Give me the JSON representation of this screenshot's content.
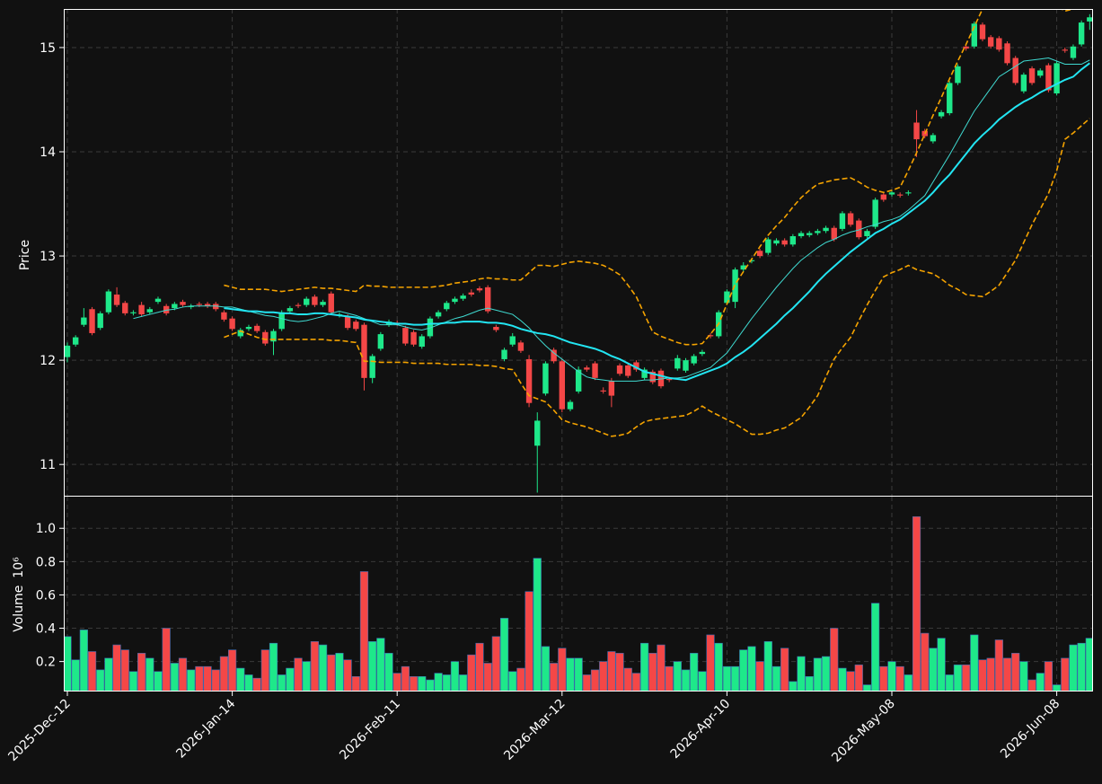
{
  "chart_data": {
    "type": "candlestick",
    "ylabel": "Price",
    "volume_ylabel": "Volume",
    "volume_scale": "10⁶",
    "up_color": "#1ee88a",
    "down_color": "#f44747",
    "grid": true,
    "ylim": [
      10.7,
      15.37
    ],
    "yticks": [
      11,
      12,
      13,
      14,
      15
    ],
    "volume_ylim": [
      0.02,
      1.19
    ],
    "volume_yticks": [
      0.2,
      0.4,
      0.6,
      0.8,
      {
        "value": 1,
        "label": "1.0"
      }
    ],
    "categories": [
      "2025-Dec-12",
      null,
      null,
      null,
      null,
      null,
      null,
      null,
      null,
      null,
      null,
      null,
      null,
      null,
      null,
      null,
      null,
      null,
      null,
      null,
      "2026-Jan-14",
      null,
      null,
      null,
      null,
      null,
      null,
      null,
      null,
      null,
      null,
      null,
      null,
      null,
      null,
      null,
      null,
      null,
      null,
      null,
      "2026-Feb-11",
      null,
      null,
      null,
      null,
      null,
      null,
      null,
      null,
      null,
      null,
      null,
      null,
      null,
      null,
      null,
      null,
      null,
      null,
      null,
      "2026-Mar-12",
      null,
      null,
      null,
      null,
      null,
      null,
      null,
      null,
      null,
      null,
      null,
      null,
      null,
      null,
      null,
      null,
      null,
      null,
      null,
      "2026-Apr-10",
      null,
      null,
      null,
      null,
      null,
      null,
      null,
      null,
      null,
      null,
      null,
      null,
      null,
      null,
      null,
      null,
      null,
      null,
      null,
      "2026-May-08",
      null,
      null,
      null,
      null,
      null,
      null,
      null,
      null,
      null,
      null,
      null,
      null,
      null,
      null,
      null,
      null,
      null,
      null,
      null,
      "2026-Jun-08",
      null,
      null,
      null,
      null
    ],
    "open": [
      12.03,
      12.15,
      12.34,
      12.49,
      12.31,
      12.46,
      12.63,
      12.55,
      12.45,
      12.53,
      12.46,
      12.56,
      12.52,
      12.5,
      12.56,
      12.51,
      12.54,
      12.54,
      12.54,
      12.46,
      12.4,
      12.23,
      12.3,
      12.33,
      12.27,
      12.18,
      12.3,
      12.47,
      12.53,
      12.53,
      12.61,
      12.53,
      12.64,
      12.43,
      12.42,
      12.37,
      12.34,
      11.83,
      12.11,
      12.34,
      12.36,
      12.31,
      12.27,
      12.13,
      12.23,
      12.42,
      12.49,
      12.56,
      12.59,
      12.65,
      12.69,
      12.7,
      12.32,
      12.01,
      12.15,
      12.17,
      12.01,
      11.18,
      11.68,
      12.1,
      11.99,
      11.53,
      11.7,
      11.93,
      11.97,
      11.71,
      11.8,
      11.95,
      11.95,
      11.98,
      11.83,
      11.89,
      11.9,
      11.82,
      11.92,
      11.9,
      11.97,
      12.06,
      12.24,
      12.23,
      12.55,
      12.56,
      12.87,
      12.95,
      13.05,
      13.03,
      13.12,
      13.15,
      13.11,
      13.19,
      13.2,
      13.22,
      13.24,
      13.27,
      13.26,
      13.41,
      13.34,
      13.19,
      13.28,
      13.59,
      13.59,
      13.59,
      13.6,
      14.28,
      14.2,
      14.1,
      14.34,
      14.37,
      14.66,
      15.01,
      15.01,
      15.22,
      15.1,
      15.09,
      15.04,
      14.9,
      14.58,
      14.8,
      14.73,
      14.83,
      14.56,
      14.98,
      14.9,
      15.03,
      15.25
    ],
    "high": [
      12.17,
      12.24,
      12.5,
      12.51,
      12.47,
      12.68,
      12.7,
      12.57,
      12.48,
      12.56,
      12.51,
      12.61,
      12.54,
      12.56,
      12.58,
      12.54,
      12.56,
      12.56,
      12.56,
      12.48,
      12.42,
      12.31,
      12.34,
      12.35,
      12.29,
      12.3,
      12.48,
      12.52,
      12.55,
      12.61,
      12.63,
      12.58,
      12.66,
      12.46,
      12.44,
      12.39,
      12.36,
      12.06,
      12.27,
      12.39,
      12.38,
      12.33,
      12.29,
      12.25,
      12.42,
      12.48,
      12.57,
      12.61,
      12.64,
      12.68,
      12.71,
      12.72,
      12.34,
      12.12,
      12.26,
      12.19,
      12.05,
      11.5,
      11.99,
      12.12,
      12.01,
      11.62,
      11.94,
      11.95,
      11.99,
      11.74,
      11.83,
      11.97,
      11.97,
      12.0,
      11.93,
      11.91,
      11.92,
      11.84,
      12.05,
      12.02,
      12.06,
      12.1,
      12.26,
      12.48,
      12.68,
      12.89,
      12.94,
      12.98,
      13.07,
      13.18,
      13.17,
      13.17,
      13.21,
      13.24,
      13.24,
      13.26,
      13.29,
      13.29,
      13.43,
      13.43,
      13.36,
      13.26,
      13.56,
      13.61,
      13.63,
      13.61,
      13.63,
      14.4,
      14.22,
      14.18,
      14.4,
      14.68,
      14.84,
      15.03,
      15.25,
      15.24,
      15.12,
      15.11,
      15.06,
      14.92,
      14.76,
      14.82,
      14.8,
      14.85,
      14.87,
      15.0,
      15.03,
      15.26,
      15.32
    ],
    "low": [
      11.98,
      12.13,
      12.32,
      12.24,
      12.29,
      12.44,
      12.51,
      12.43,
      12.43,
      12.42,
      12.44,
      12.54,
      12.43,
      12.48,
      12.51,
      12.49,
      12.51,
      12.5,
      12.47,
      12.37,
      12.28,
      12.21,
      12.28,
      12.26,
      12.14,
      12.05,
      12.28,
      12.45,
      12.5,
      12.51,
      12.51,
      12.51,
      12.44,
      12.41,
      12.29,
      12.28,
      11.71,
      11.78,
      12.09,
      12.32,
      12.33,
      12.14,
      12.13,
      12.11,
      12.21,
      12.4,
      12.47,
      12.54,
      12.57,
      12.61,
      12.65,
      12.45,
      12.27,
      11.99,
      12.13,
      12.07,
      11.55,
      10.73,
      11.66,
      11.97,
      11.5,
      11.51,
      11.68,
      11.89,
      11.81,
      11.68,
      11.55,
      11.85,
      11.83,
      11.89,
      11.81,
      11.77,
      11.73,
      11.79,
      11.9,
      11.88,
      11.95,
      12.04,
      12.21,
      12.21,
      12.53,
      12.5,
      12.85,
      12.93,
      12.98,
      13.01,
      13.1,
      13.09,
      13.09,
      13.17,
      13.18,
      13.2,
      13.22,
      13.14,
      13.24,
      13.28,
      13.16,
      13.17,
      13.26,
      13.52,
      13.57,
      13.56,
      13.58,
      13.95,
      14.13,
      14.08,
      14.32,
      14.35,
      14.64,
      14.97,
      14.99,
      15.06,
      14.99,
      14.96,
      14.83,
      14.64,
      14.56,
      14.64,
      14.71,
      14.57,
      14.54,
      14.95,
      14.88,
      15.01,
      15.17
    ],
    "close": [
      12.14,
      12.22,
      12.41,
      12.26,
      12.45,
      12.66,
      12.53,
      12.45,
      12.46,
      12.44,
      12.49,
      12.59,
      12.45,
      12.54,
      12.53,
      12.52,
      12.53,
      12.52,
      12.49,
      12.39,
      12.3,
      12.29,
      12.32,
      12.28,
      12.16,
      12.28,
      12.46,
      12.5,
      12.52,
      12.59,
      12.53,
      12.56,
      12.46,
      12.44,
      12.31,
      12.3,
      11.83,
      12.04,
      12.25,
      12.37,
      12.35,
      12.16,
      12.15,
      12.23,
      12.4,
      12.46,
      12.55,
      12.59,
      12.62,
      12.63,
      12.67,
      12.47,
      12.29,
      12.1,
      12.23,
      12.09,
      11.59,
      11.42,
      11.97,
      11.99,
      11.53,
      11.6,
      11.91,
      11.91,
      11.83,
      11.7,
      11.66,
      11.87,
      11.85,
      11.91,
      11.91,
      11.79,
      11.75,
      11.81,
      12.02,
      12.0,
      12.04,
      12.08,
      12.23,
      12.46,
      12.66,
      12.87,
      12.91,
      12.96,
      13.0,
      13.16,
      13.15,
      13.11,
      13.19,
      13.22,
      13.22,
      13.24,
      13.27,
      13.16,
      13.41,
      13.3,
      13.18,
      13.24,
      13.54,
      13.54,
      13.61,
      13.58,
      13.61,
      14.12,
      14.15,
      14.16,
      14.38,
      14.66,
      14.82,
      14.99,
      15.23,
      15.08,
      15.01,
      14.98,
      14.85,
      14.66,
      14.74,
      14.66,
      14.78,
      14.59,
      14.85,
      14.97,
      15.01,
      15.24,
      15.29
    ],
    "volume": [
      0.35,
      0.21,
      0.39,
      0.26,
      0.15,
      0.22,
      0.3,
      0.27,
      0.14,
      0.25,
      0.22,
      0.14,
      0.4,
      0.19,
      0.22,
      0.15,
      0.17,
      0.17,
      0.15,
      0.23,
      0.27,
      0.16,
      0.12,
      0.1,
      0.27,
      0.31,
      0.12,
      0.16,
      0.22,
      0.2,
      0.32,
      0.3,
      0.24,
      0.25,
      0.21,
      0.11,
      0.74,
      0.32,
      0.34,
      0.25,
      0.13,
      0.17,
      0.11,
      0.11,
      0.09,
      0.13,
      0.12,
      0.2,
      0.12,
      0.24,
      0.31,
      0.19,
      0.35,
      0.46,
      0.14,
      0.16,
      0.62,
      0.82,
      0.29,
      0.19,
      0.28,
      0.22,
      0.22,
      0.12,
      0.15,
      0.2,
      0.26,
      0.25,
      0.16,
      0.13,
      0.31,
      0.25,
      0.3,
      0.17,
      0.2,
      0.15,
      0.25,
      0.14,
      0.36,
      0.31,
      0.17,
      0.17,
      0.27,
      0.29,
      0.2,
      0.32,
      0.17,
      0.28,
      0.08,
      0.23,
      0.11,
      0.22,
      0.23,
      0.4,
      0.16,
      0.14,
      0.18,
      0.06,
      0.55,
      0.17,
      0.2,
      0.17,
      0.12,
      1.07,
      0.37,
      0.28,
      0.34,
      0.12,
      0.18,
      0.18,
      0.36,
      0.21,
      0.22,
      0.33,
      0.22,
      0.25,
      0.2,
      0.09,
      0.13,
      0.2,
      0.06,
      0.22,
      0.3,
      0.31,
      0.34
    ],
    "overlays": [
      {
        "color": "#3fd9d0",
        "width": 1,
        "dash": false,
        "values": [
          null,
          null,
          null,
          null,
          null,
          null,
          null,
          null,
          12.4,
          12.42,
          12.44,
          12.46,
          12.48,
          12.49,
          12.51,
          12.52,
          12.52,
          12.52,
          12.52,
          12.51,
          12.51,
          12.49,
          12.47,
          12.45,
          12.43,
          12.42,
          12.4,
          12.38,
          12.37,
          12.38,
          12.4,
          12.42,
          12.45,
          12.47,
          12.45,
          12.43,
          12.4,
          12.37,
          12.34,
          12.34,
          12.34,
          12.32,
          12.3,
          12.29,
          12.31,
          12.34,
          12.37,
          12.4,
          12.42,
          12.45,
          12.48,
          12.5,
          12.48,
          12.46,
          12.44,
          12.38,
          12.31,
          12.22,
          12.14,
          12.07,
          12.01,
          11.95,
          11.89,
          11.84,
          11.82,
          11.81,
          11.8,
          11.8,
          11.8,
          11.8,
          11.81,
          11.81,
          11.82,
          11.83,
          11.83,
          11.84,
          11.87,
          11.9,
          11.93,
          12.0,
          12.07,
          12.18,
          12.29,
          12.4,
          12.5,
          12.6,
          12.7,
          12.79,
          12.88,
          12.96,
          13.02,
          13.08,
          13.13,
          13.16,
          13.2,
          13.23,
          13.25,
          13.28,
          13.3,
          13.33,
          13.35,
          13.38,
          13.44,
          13.51,
          13.58,
          13.71,
          13.84,
          13.97,
          14.11,
          14.25,
          14.39,
          14.5,
          14.61,
          14.72,
          14.77,
          14.82,
          14.87,
          14.88,
          14.89,
          14.9,
          14.87,
          14.84,
          14.84,
          14.84,
          14.88
        ]
      },
      {
        "color": "#22e5f2",
        "width": 2,
        "dash": false,
        "values": [
          null,
          null,
          null,
          null,
          null,
          null,
          null,
          null,
          null,
          null,
          null,
          null,
          null,
          null,
          null,
          null,
          null,
          null,
          null,
          12.5,
          12.49,
          12.48,
          12.47,
          12.47,
          12.46,
          12.46,
          12.45,
          12.45,
          12.44,
          12.44,
          12.45,
          12.45,
          12.44,
          12.43,
          12.42,
          12.41,
          12.39,
          12.38,
          12.37,
          12.36,
          12.35,
          12.35,
          12.34,
          12.34,
          12.35,
          12.35,
          12.36,
          12.36,
          12.37,
          12.37,
          12.37,
          12.36,
          12.36,
          12.35,
          12.33,
          12.3,
          12.28,
          12.26,
          12.25,
          12.23,
          12.2,
          12.17,
          12.15,
          12.13,
          12.11,
          12.08,
          12.04,
          12.01,
          11.97,
          11.93,
          11.89,
          11.87,
          11.85,
          11.83,
          11.82,
          11.81,
          11.84,
          11.87,
          11.9,
          11.93,
          11.97,
          12.03,
          12.08,
          12.14,
          12.21,
          12.28,
          12.35,
          12.43,
          12.5,
          12.58,
          12.66,
          12.75,
          12.83,
          12.9,
          12.97,
          13.04,
          13.1,
          13.16,
          13.22,
          13.26,
          13.31,
          13.35,
          13.41,
          13.47,
          13.53,
          13.61,
          13.7,
          13.78,
          13.88,
          13.98,
          14.08,
          14.16,
          14.23,
          14.31,
          14.37,
          14.43,
          14.48,
          14.52,
          14.57,
          14.61,
          14.65,
          14.69,
          14.72,
          14.79,
          14.85
        ]
      },
      {
        "color": "#f5a300",
        "width": 1.6,
        "dash": true,
        "values": [
          null,
          null,
          null,
          null,
          null,
          null,
          null,
          null,
          null,
          null,
          null,
          null,
          null,
          null,
          null,
          null,
          null,
          null,
          null,
          12.72,
          12.7,
          12.68,
          12.68,
          12.68,
          12.68,
          12.67,
          12.66,
          12.67,
          12.68,
          12.69,
          12.7,
          12.69,
          12.69,
          12.68,
          12.67,
          12.66,
          12.72,
          12.71,
          12.71,
          12.7,
          12.7,
          12.7,
          12.7,
          12.7,
          12.7,
          12.71,
          12.72,
          12.74,
          12.75,
          12.76,
          12.78,
          12.79,
          12.78,
          12.78,
          12.77,
          12.77,
          12.84,
          12.91,
          12.91,
          12.9,
          12.92,
          12.94,
          12.95,
          12.94,
          12.93,
          12.91,
          12.87,
          12.82,
          12.72,
          12.61,
          12.44,
          12.27,
          12.23,
          12.2,
          12.17,
          12.15,
          12.15,
          12.16,
          12.25,
          12.35,
          12.54,
          12.73,
          12.85,
          12.97,
          13.09,
          13.2,
          13.29,
          13.37,
          13.47,
          13.56,
          13.63,
          13.69,
          13.71,
          13.73,
          13.74,
          13.75,
          13.71,
          13.66,
          13.63,
          13.61,
          13.63,
          13.66,
          13.82,
          13.99,
          14.17,
          14.35,
          14.52,
          14.7,
          14.87,
          15.03,
          15.2,
          15.37,
          15.48,
          15.56,
          15.62,
          15.65,
          15.64,
          15.6,
          15.54,
          15.47,
          15.4,
          15.35,
          15.37,
          15.38,
          15.4
        ]
      },
      {
        "color": "#f5a300",
        "width": 1.6,
        "dash": true,
        "values": [
          null,
          null,
          null,
          null,
          null,
          null,
          null,
          null,
          null,
          null,
          null,
          null,
          null,
          null,
          null,
          null,
          null,
          null,
          null,
          12.22,
          12.25,
          12.28,
          12.25,
          12.22,
          12.2,
          12.2,
          12.2,
          12.2,
          12.2,
          12.2,
          12.2,
          12.2,
          12.19,
          12.19,
          12.18,
          12.17,
          11.99,
          11.99,
          11.98,
          11.98,
          11.98,
          11.98,
          11.97,
          11.97,
          11.97,
          11.97,
          11.96,
          11.96,
          11.96,
          11.96,
          11.95,
          11.95,
          11.94,
          11.92,
          11.91,
          11.78,
          11.66,
          11.63,
          11.6,
          11.52,
          11.43,
          11.4,
          11.38,
          11.36,
          11.33,
          11.3,
          11.27,
          11.28,
          11.3,
          11.36,
          11.41,
          11.43,
          11.44,
          11.45,
          11.46,
          11.47,
          11.51,
          11.56,
          11.51,
          11.47,
          11.43,
          11.39,
          11.34,
          11.29,
          11.29,
          11.3,
          11.33,
          11.35,
          11.4,
          11.45,
          11.55,
          11.66,
          11.84,
          12.01,
          12.12,
          12.22,
          12.38,
          12.53,
          12.67,
          12.8,
          12.84,
          12.87,
          12.91,
          12.87,
          12.85,
          12.83,
          12.78,
          12.72,
          12.68,
          12.63,
          12.62,
          12.61,
          12.66,
          12.72,
          12.84,
          12.96,
          13.13,
          13.3,
          13.45,
          13.6,
          13.82,
          14.12,
          14.18,
          14.25,
          14.32
        ]
      }
    ]
  }
}
